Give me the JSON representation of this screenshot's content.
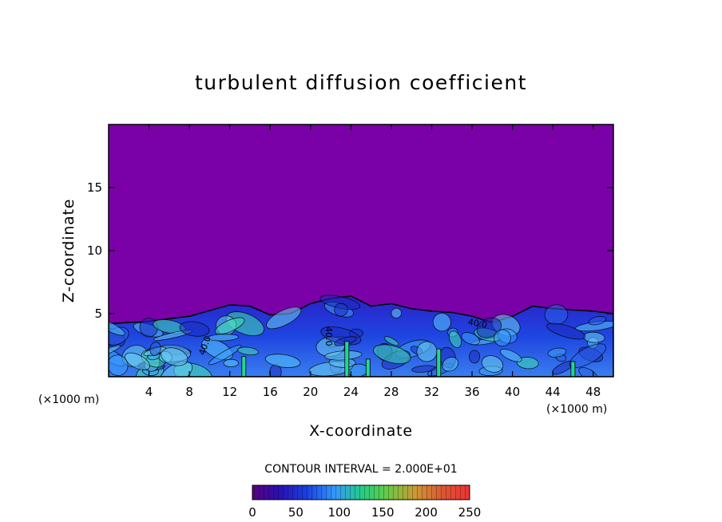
{
  "chart_data": {
    "type": "heatmap",
    "title": "turbulent diffusion coefficient",
    "xlabel": "X-coordinate",
    "ylabel": "Z-coordinate",
    "x_unit_label_left": "(×1000 m)",
    "x_unit_label_right": "(×1000 m)",
    "xlim": [
      0,
      50
    ],
    "ylim": [
      0,
      20
    ],
    "x_ticks": [
      4,
      8,
      12,
      16,
      20,
      24,
      28,
      32,
      36,
      40,
      44,
      48
    ],
    "y_ticks": [
      5,
      10,
      15
    ],
    "contour_interval_text": "CONTOUR INTERVAL = 2.000E+01",
    "contour_labels": [
      "40.0",
      "40.0",
      "40.0"
    ],
    "colorbar": {
      "min": 0,
      "max": 250,
      "tick_labels": [
        "0",
        "50",
        "100",
        "150",
        "200",
        "250"
      ],
      "colors": [
        "#7700aa",
        "#1a1acc",
        "#3399ff",
        "#22cc88",
        "#77cc33",
        "#cc9933",
        "#dd5533",
        "#ee3333"
      ]
    },
    "background_value_color": "#7a00a8",
    "boundary_layer_top_estimate": [
      [
        0,
        4.2
      ],
      [
        4,
        4.4
      ],
      [
        8,
        4.8
      ],
      [
        12,
        5.7
      ],
      [
        14,
        5.6
      ],
      [
        16,
        4.9
      ],
      [
        18,
        5.0
      ],
      [
        20,
        5.8
      ],
      [
        22,
        6.2
      ],
      [
        24,
        6.4
      ],
      [
        26,
        5.6
      ],
      [
        28,
        5.8
      ],
      [
        30,
        5.4
      ],
      [
        32,
        5.2
      ],
      [
        34,
        5.1
      ],
      [
        36,
        4.8
      ],
      [
        38,
        4.3
      ],
      [
        40,
        4.8
      ],
      [
        42,
        5.6
      ],
      [
        44,
        5.4
      ],
      [
        46,
        5.3
      ],
      [
        48,
        5.2
      ],
      [
        50,
        5.0
      ]
    ]
  }
}
